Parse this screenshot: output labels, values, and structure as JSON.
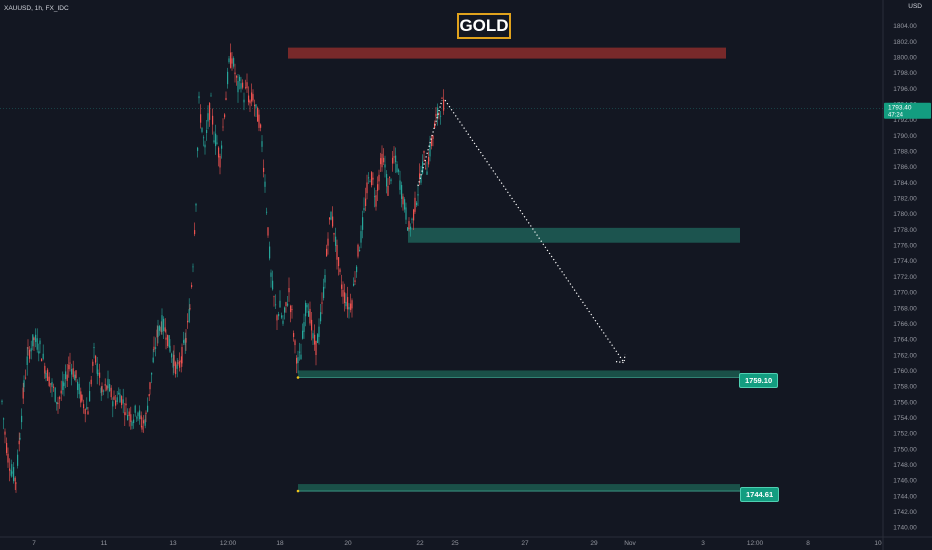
{
  "symbol": "XAUUSD, 1h, FX_IDC",
  "currency": "USD",
  "title": "GOLD",
  "colors": {
    "background": "#131722",
    "bull": "#26a69a",
    "bear": "#ef5350",
    "supply_zone": "#8b2d2b",
    "demand_zone": "#1e5f57",
    "level_zone": "#1c5a4f",
    "label_bg": "#139d80",
    "title_border": "#e0a21d",
    "current_price_bg": "#139d80"
  },
  "chart_data": {
    "type": "candlestick",
    "ylim": [
      1739,
      1806
    ],
    "y_ticks": [
      1740,
      1742,
      1744,
      1746,
      1748,
      1750,
      1752,
      1754,
      1756,
      1758,
      1760,
      1762,
      1764,
      1766,
      1768,
      1770,
      1772,
      1774,
      1776,
      1778,
      1780,
      1782,
      1784,
      1786,
      1788,
      1790,
      1792,
      1794,
      1796,
      1798,
      1800,
      1802,
      1804
    ],
    "x_ticks": [
      "7",
      "11",
      "13",
      "12:00",
      "18",
      "20",
      "22",
      "25",
      "27",
      "29",
      "Nov",
      "3",
      "12:00",
      "8",
      "10"
    ],
    "current_price": "1793.40",
    "current_countdown": "47:24",
    "price_path": [
      [
        0,
        1756
      ],
      [
        3,
        1752
      ],
      [
        6,
        1749
      ],
      [
        10,
        1747
      ],
      [
        14,
        1746
      ],
      [
        18,
        1752
      ],
      [
        22,
        1758
      ],
      [
        26,
        1762
      ],
      [
        32,
        1764
      ],
      [
        38,
        1763
      ],
      [
        44,
        1760
      ],
      [
        50,
        1758
      ],
      [
        56,
        1756
      ],
      [
        62,
        1758
      ],
      [
        68,
        1761
      ],
      [
        74,
        1759
      ],
      [
        80,
        1756
      ],
      [
        86,
        1755
      ],
      [
        92,
        1762
      ],
      [
        96,
        1760
      ],
      [
        100,
        1757
      ],
      [
        106,
        1758
      ],
      [
        112,
        1756
      ],
      [
        118,
        1757
      ],
      [
        124,
        1755
      ],
      [
        130,
        1754
      ],
      [
        136,
        1755
      ],
      [
        140,
        1753
      ],
      [
        144,
        1754
      ],
      [
        148,
        1758
      ],
      [
        152,
        1762
      ],
      [
        156,
        1765
      ],
      [
        160,
        1766
      ],
      [
        164,
        1765
      ],
      [
        168,
        1763
      ],
      [
        172,
        1761
      ],
      [
        176,
        1760
      ],
      [
        180,
        1762
      ],
      [
        184,
        1764
      ],
      [
        188,
        1768
      ],
      [
        191,
        1774
      ],
      [
        194,
        1782
      ],
      [
        197,
        1794
      ],
      [
        200,
        1791
      ],
      [
        203,
        1788
      ],
      [
        206,
        1792
      ],
      [
        209,
        1794
      ],
      [
        212,
        1790
      ],
      [
        215,
        1789
      ],
      [
        218,
        1787
      ],
      [
        221,
        1791
      ],
      [
        224,
        1795
      ],
      [
        227,
        1799
      ],
      [
        230,
        1800
      ],
      [
        233,
        1798
      ],
      [
        236,
        1796
      ],
      [
        239,
        1797
      ],
      [
        242,
        1795
      ],
      [
        245,
        1796
      ],
      [
        248,
        1794
      ],
      [
        251,
        1795
      ],
      [
        254,
        1793
      ],
      [
        257,
        1792
      ],
      [
        260,
        1789
      ],
      [
        263,
        1784
      ],
      [
        266,
        1778
      ],
      [
        269,
        1772
      ],
      [
        272,
        1769
      ],
      [
        275,
        1767
      ],
      [
        278,
        1768
      ],
      [
        281,
        1766
      ],
      [
        284,
        1768
      ],
      [
        287,
        1770
      ],
      [
        290,
        1767
      ],
      [
        293,
        1763
      ],
      [
        296,
        1761
      ],
      [
        299,
        1762
      ],
      [
        302,
        1766
      ],
      [
        305,
        1769
      ],
      [
        308,
        1767
      ],
      [
        311,
        1764
      ],
      [
        314,
        1763
      ],
      [
        317,
        1765
      ],
      [
        320,
        1768
      ],
      [
        323,
        1772
      ],
      [
        326,
        1777
      ],
      [
        329,
        1780
      ],
      [
        332,
        1778
      ],
      [
        335,
        1775
      ],
      [
        338,
        1772
      ],
      [
        341,
        1770
      ],
      [
        344,
        1769
      ],
      [
        347,
        1768
      ],
      [
        350,
        1769
      ],
      [
        353,
        1772
      ],
      [
        356,
        1775
      ],
      [
        359,
        1777
      ],
      [
        362,
        1780
      ],
      [
        365,
        1783
      ],
      [
        368,
        1785
      ],
      [
        371,
        1784
      ],
      [
        374,
        1782
      ],
      [
        377,
        1785
      ],
      [
        380,
        1787
      ],
      [
        383,
        1786
      ],
      [
        386,
        1783
      ],
      [
        389,
        1785
      ],
      [
        392,
        1787
      ],
      [
        395,
        1786
      ],
      [
        398,
        1784
      ],
      [
        401,
        1782
      ],
      [
        404,
        1780
      ],
      [
        407,
        1778
      ],
      [
        410,
        1779
      ],
      [
        413,
        1781
      ],
      [
        416,
        1783
      ],
      [
        419,
        1785
      ],
      [
        422,
        1787
      ],
      [
        425,
        1786
      ],
      [
        428,
        1788
      ],
      [
        431,
        1790
      ],
      [
        434,
        1792
      ],
      [
        437,
        1793
      ],
      [
        440,
        1794
      ],
      [
        442,
        1793.4
      ]
    ],
    "zones": [
      {
        "name": "supply",
        "ymin": 1799.8,
        "ymax": 1801.2,
        "color": "#8b2d2b"
      },
      {
        "name": "demand",
        "ymin": 1776.3,
        "ymax": 1778.2,
        "color": "#1e5f57"
      },
      {
        "name": "level-1759",
        "ymin": 1759.1,
        "ymax": 1760.0,
        "color": "#1c5a4f",
        "label": "1759.10"
      },
      {
        "name": "level-1744",
        "ymin": 1744.61,
        "ymax": 1745.5,
        "color": "#1c5a4f",
        "label": "1744.61"
      }
    ],
    "projection": {
      "from": 1794.5,
      "to": 1761
    }
  }
}
